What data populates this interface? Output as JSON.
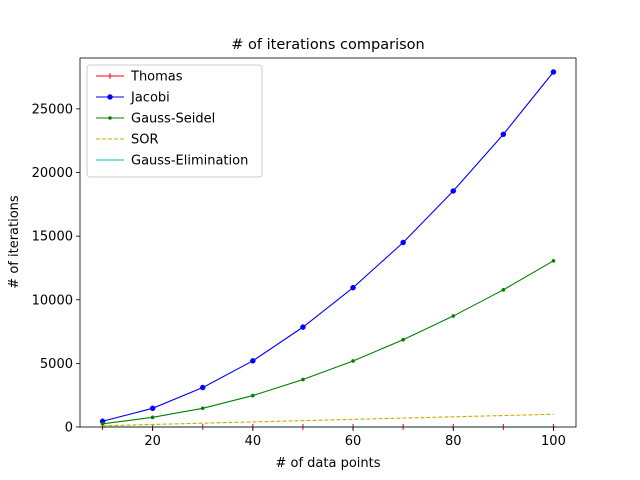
{
  "chart_data": {
    "type": "line",
    "title": "# of iterations comparison",
    "xlabel": "# of data points",
    "ylabel": "# of iterations",
    "x": [
      10,
      20,
      30,
      40,
      50,
      60,
      70,
      80,
      90,
      100
    ],
    "xlim": [
      5.5,
      104.5
    ],
    "ylim": [
      0,
      29000
    ],
    "xticks": [
      20,
      40,
      60,
      80,
      100
    ],
    "yticks": [
      0,
      5000,
      10000,
      15000,
      20000,
      25000
    ],
    "grid": false,
    "legend": "top-left",
    "series": [
      {
        "name": "Thomas",
        "color": "#ff0000",
        "marker": "+",
        "linestyle": "solid",
        "values": [
          1,
          1,
          1,
          1,
          1,
          1,
          1,
          1,
          1,
          1
        ]
      },
      {
        "name": "Jacobi",
        "color": "#0000ff",
        "marker": "o",
        "linestyle": "solid",
        "values": [
          450,
          1470,
          3100,
          5200,
          7850,
          10950,
          14500,
          18550,
          23000,
          27900
        ]
      },
      {
        "name": "Gauss-Seidel",
        "color": "#008000",
        "marker": ".",
        "linestyle": "solid",
        "values": [
          250,
          760,
          1470,
          2470,
          3730,
          5190,
          6860,
          8720,
          10780,
          13060
        ]
      },
      {
        "name": "SOR",
        "color": "#ccaa00",
        "marker": "none",
        "linestyle": "dashed",
        "values": [
          100,
          200,
          300,
          400,
          500,
          600,
          700,
          800,
          900,
          1000
        ]
      },
      {
        "name": "Gauss-Elimination",
        "color": "#00bfbf",
        "marker": "none",
        "linestyle": "solid",
        "values": [
          0,
          0,
          0,
          0,
          0,
          0,
          0,
          0,
          0,
          0
        ]
      }
    ]
  }
}
